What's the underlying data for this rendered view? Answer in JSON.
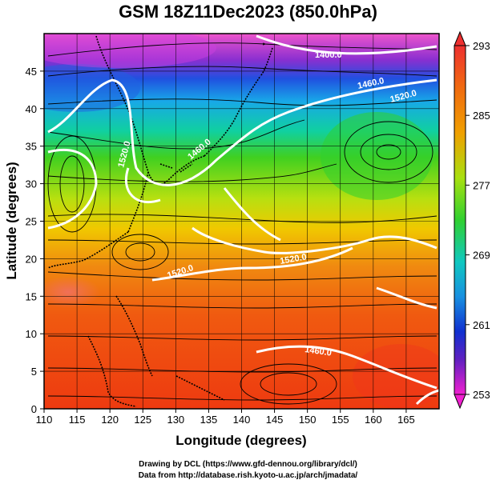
{
  "title": "GSM 18Z11Dec2023 (850.0hPa)",
  "xaxis": {
    "label": "Longitude (degrees)",
    "ticks": [
      "110",
      "115",
      "120",
      "125",
      "130",
      "135",
      "140",
      "145",
      "150",
      "155",
      "160",
      "165"
    ],
    "range": [
      110,
      170
    ]
  },
  "yaxis": {
    "label": "Latitude  (degrees)",
    "ticks": [
      "0",
      "5",
      "10",
      "15",
      "20",
      "25",
      "30",
      "35",
      "40",
      "45"
    ],
    "range": [
      0,
      50
    ]
  },
  "colorbar": {
    "ticks": [
      "253",
      "261",
      "269",
      "277",
      "285",
      "293"
    ],
    "range": [
      253,
      293
    ]
  },
  "contours": [
    {
      "label": "1400.0"
    },
    {
      "label": "1460.0"
    },
    {
      "label": "1520.0"
    },
    {
      "label": "1520.0"
    },
    {
      "label": "1460.0"
    },
    {
      "label": "1520.0"
    },
    {
      "label": "1520.0"
    },
    {
      "label": "1460.0"
    }
  ],
  "credits": [
    "Drawing by DCL (https://www.gfd-dennou.org/library/dcl/)",
    "Data from http://database.rish.kyoto-u.ac.jp/arch/jmadata/"
  ]
}
